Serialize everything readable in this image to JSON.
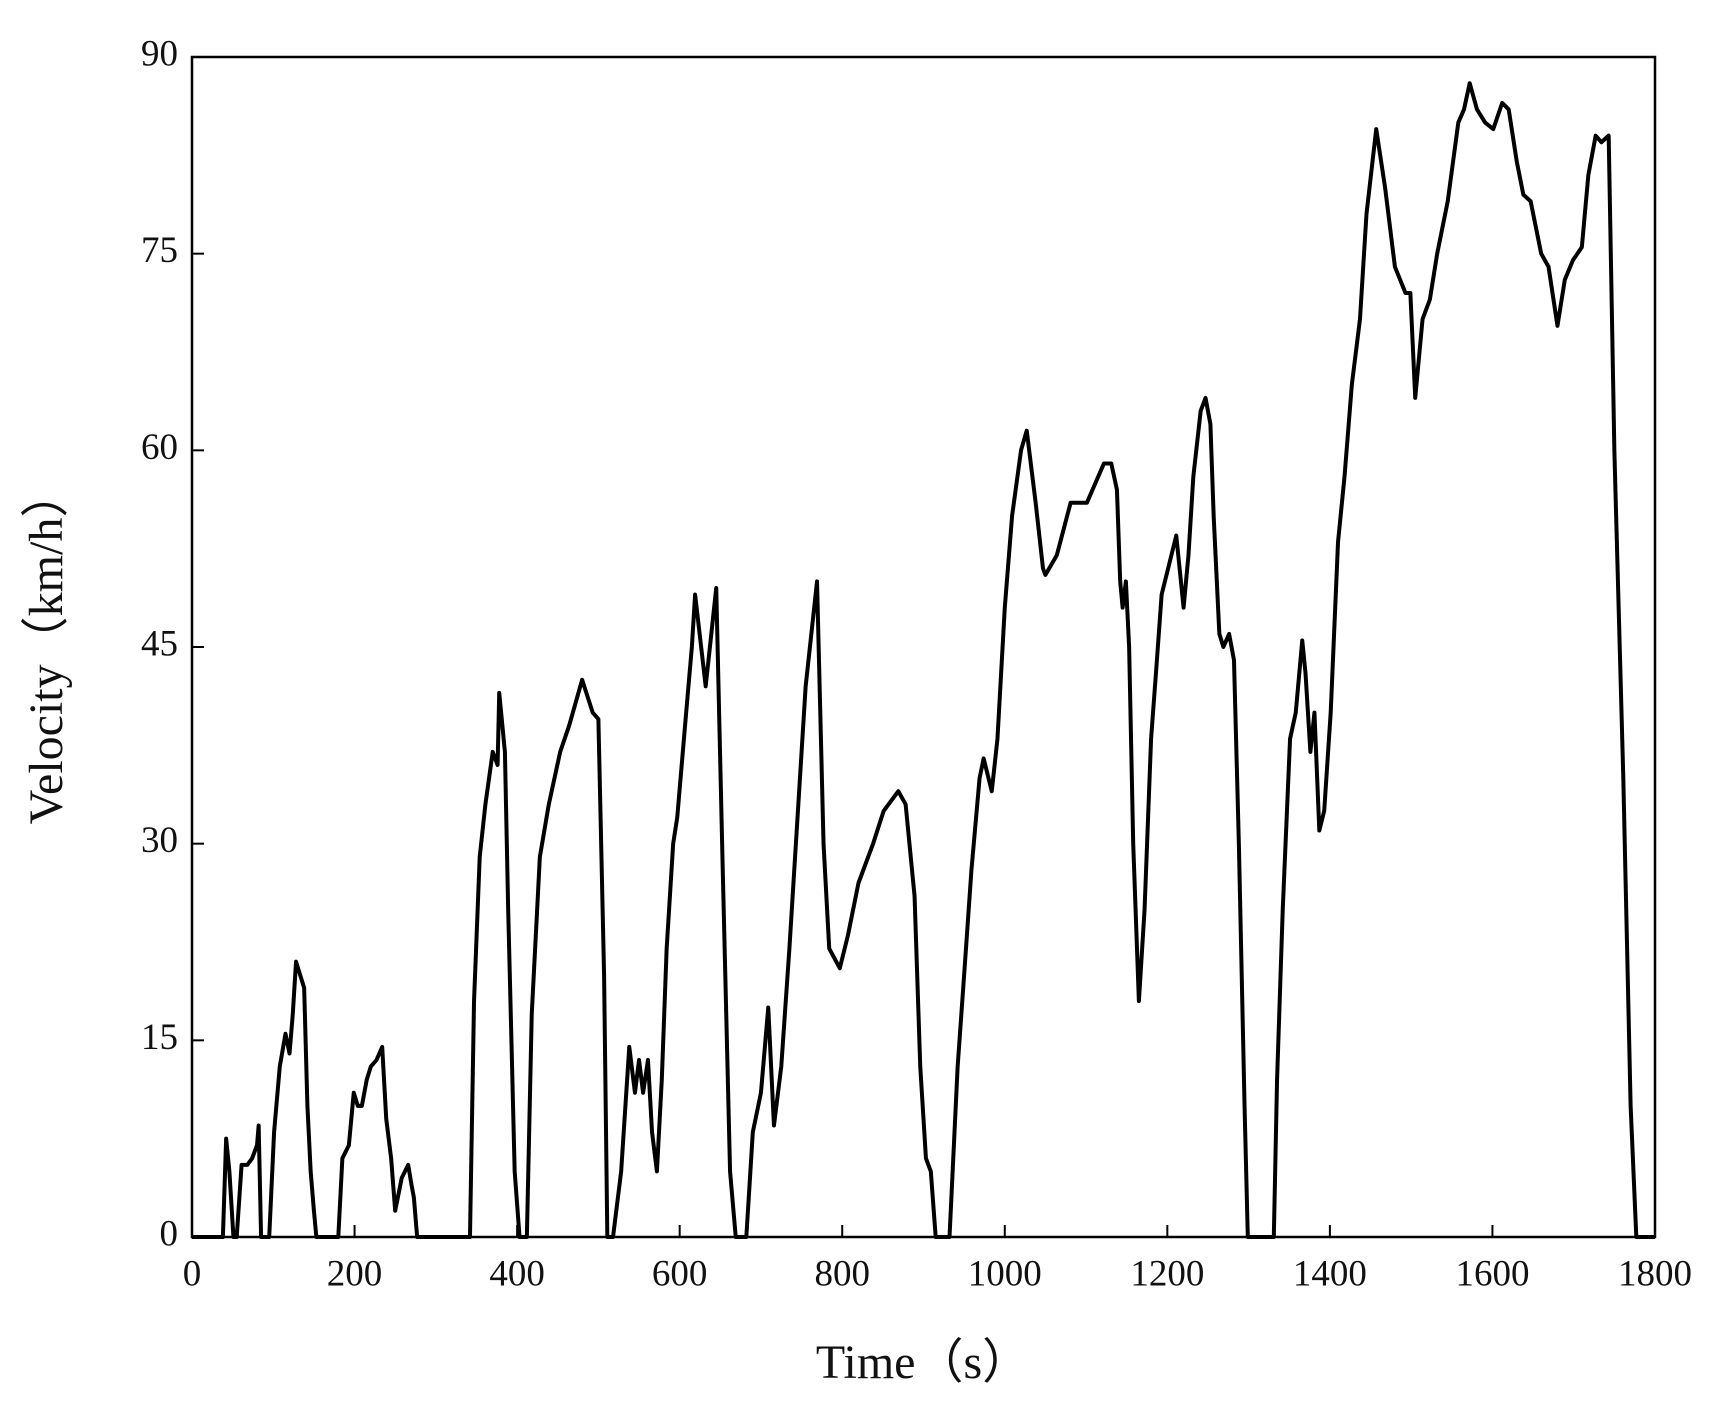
{
  "chart_data": {
    "type": "line",
    "xlabel": "Time（s）",
    "ylabel": "Velocity（km/h）",
    "x": [
      0,
      38,
      42,
      46,
      51,
      55,
      61,
      68,
      74,
      80,
      82,
      85,
      95,
      101,
      108,
      115,
      120,
      124,
      128,
      133,
      138,
      142,
      146,
      150,
      153,
      180,
      185,
      193,
      199,
      204,
      209,
      215,
      220,
      227,
      234,
      239,
      245,
      250,
      258,
      266,
      270,
      273,
      277,
      342,
      347,
      354,
      361,
      370,
      376,
      378,
      385,
      389,
      397,
      403,
      412,
      418,
      428,
      439,
      453,
      464,
      480,
      493,
      500,
      507,
      511,
      518,
      528,
      538,
      545,
      550,
      555,
      561,
      566,
      572,
      578,
      584,
      592,
      597,
      608,
      615,
      619,
      632,
      645,
      653,
      662,
      669,
      682,
      690,
      700,
      709,
      716,
      725,
      735,
      745,
      755,
      769,
      777,
      784,
      797,
      807,
      820,
      838,
      851,
      869,
      878,
      889,
      896,
      903,
      909,
      915,
      932,
      942,
      950,
      959,
      969,
      974,
      984,
      991,
      1000,
      1009,
      1020,
      1027,
      1038,
      1047,
      1050,
      1064,
      1081,
      1101,
      1122,
      1131,
      1138,
      1142,
      1145,
      1149,
      1153,
      1158,
      1165,
      1172,
      1180,
      1186,
      1193,
      1201,
      1211,
      1220,
      1226,
      1232,
      1241,
      1247,
      1253,
      1257,
      1264,
      1269,
      1276,
      1282,
      1288,
      1295,
      1299,
      1331,
      1335,
      1342,
      1351,
      1358,
      1366,
      1370,
      1376,
      1381,
      1387,
      1393,
      1401,
      1410,
      1418,
      1427,
      1437,
      1445,
      1457,
      1468,
      1480,
      1493,
      1499,
      1505,
      1514,
      1523,
      1532,
      1545,
      1558,
      1565,
      1572,
      1581,
      1591,
      1601,
      1612,
      1620,
      1630,
      1638,
      1647,
      1660,
      1669,
      1680,
      1689,
      1699,
      1710,
      1718,
      1727,
      1734,
      1743,
      1750,
      1761,
      1770,
      1777,
      1800
    ],
    "values": [
      0,
      0,
      7.5,
      5,
      0,
      0,
      5.5,
      5.5,
      6,
      7,
      8.5,
      0,
      0,
      8,
      13,
      15.5,
      14,
      17,
      21,
      20,
      19,
      10,
      5,
      2,
      0,
      0,
      6,
      7,
      11,
      10,
      10,
      12,
      13,
      13.5,
      14.5,
      9,
      6,
      2,
      4.5,
      5.5,
      4,
      3,
      0,
      0,
      18,
      29,
      33,
      37,
      36,
      41.5,
      37,
      25,
      5,
      0,
      0,
      17,
      29,
      33,
      37,
      39,
      42.5,
      40,
      39.5,
      20,
      0,
      0,
      5,
      14.5,
      11,
      13.5,
      11,
      13.5,
      8,
      5,
      12,
      22,
      30,
      32,
      40,
      45,
      49,
      42,
      49.5,
      28,
      5,
      0,
      0,
      8,
      11,
      17.5,
      8.5,
      13,
      22,
      32,
      42,
      50,
      30,
      22,
      20.5,
      23,
      27,
      30,
      32.5,
      34,
      33,
      26,
      13,
      6,
      5,
      0,
      0,
      13,
      20,
      28,
      35,
      36.5,
      34,
      38,
      48,
      55,
      60,
      61.5,
      56,
      51,
      50.5,
      52,
      56,
      56,
      59,
      59,
      57,
      50,
      48,
      50,
      45,
      30,
      18,
      25,
      38,
      43,
      49,
      51,
      53.5,
      48,
      52,
      58,
      63,
      64,
      62,
      55,
      46,
      45,
      46,
      44,
      30,
      10,
      0,
      0,
      12,
      25,
      38,
      40,
      45.5,
      43,
      37,
      40,
      31,
      32.5,
      40,
      53,
      58,
      65,
      70,
      78,
      84.5,
      80,
      74,
      72,
      72,
      64,
      70,
      71.5,
      75,
      79,
      85,
      86,
      88,
      86,
      85,
      84.5,
      86.5,
      86,
      82,
      79.5,
      79,
      75,
      74,
      69.5,
      73,
      74.5,
      75.5,
      81,
      84,
      83.5,
      84,
      60,
      35,
      10,
      0,
      0
    ],
    "color": "#000000",
    "xlim": [
      0,
      1800
    ],
    "xticks": [
      0,
      200,
      400,
      600,
      800,
      1000,
      1200,
      1400,
      1600,
      1800
    ],
    "ylim": [
      0,
      90
    ],
    "yticks": [
      0,
      15,
      30,
      45,
      60,
      75,
      90
    ],
    "grid": false
  }
}
